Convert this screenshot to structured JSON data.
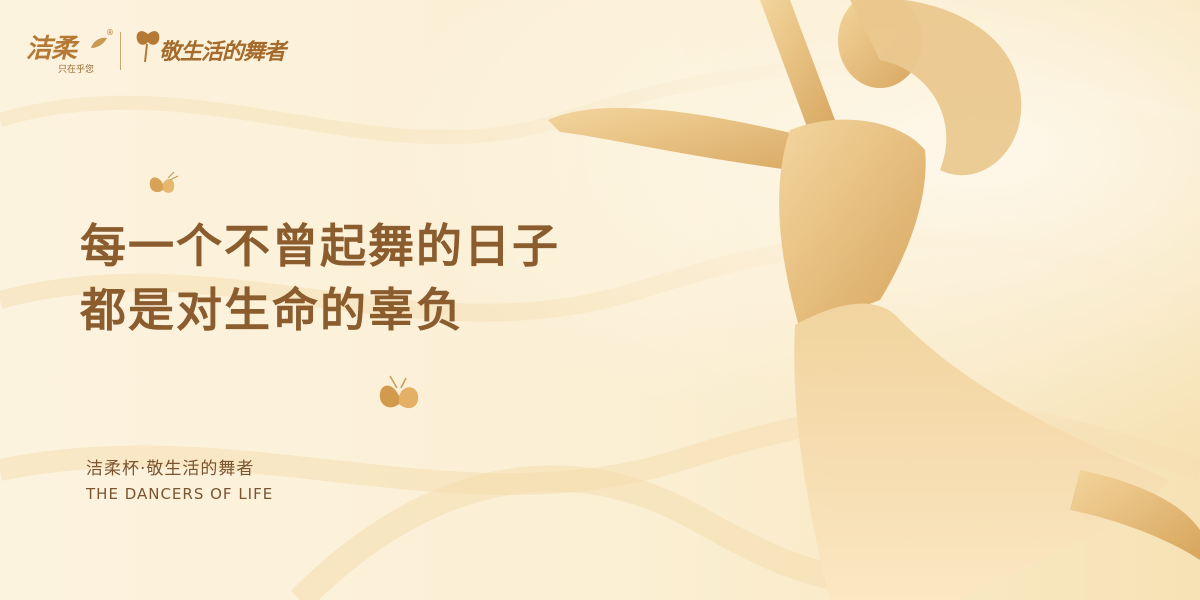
{
  "brand": {
    "name": "洁柔",
    "tagline": "只在乎您",
    "registered": "®",
    "campaign_logo_text": "敬生活的舞者"
  },
  "headline": {
    "line1": "每一个不曾起舞的日子",
    "line2": "都是对生命的辜负"
  },
  "caption": {
    "cn": "洁柔杯·敬生活的舞者",
    "en": "THE DANCERS OF LIFE"
  },
  "colors": {
    "background": "#fbf0d6",
    "gold": "#c99a55",
    "text_brown": "#8a5c2e"
  },
  "icons": [
    "butterfly-icon",
    "leaf-icon"
  ]
}
